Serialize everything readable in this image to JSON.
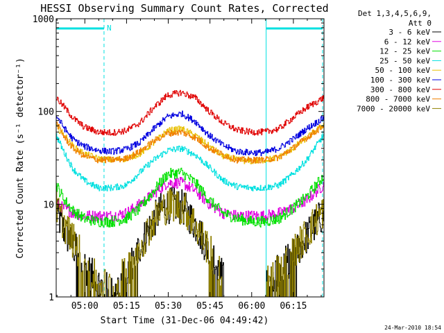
{
  "chart_data": {
    "type": "line",
    "title": "HESSI Observing Summary Count Rates, Corrected",
    "xlabel": "Start Time (31-Dec-06 04:49:42)",
    "ylabel": "Corrected Count Rate (s⁻¹ detector⁻¹)",
    "x_unit": "minutes after 04:49:42",
    "xlim": [
      0,
      96.3
    ],
    "ylim": [
      1,
      1000
    ],
    "yscale": "log",
    "x_tick_labels": [
      "05:00",
      "05:15",
      "05:30",
      "05:45",
      "06:00",
      "06:15"
    ],
    "x_tick_values": [
      10.3,
      25.3,
      40.3,
      55.3,
      70.3,
      85.3
    ],
    "y_tick_labels": [
      "1",
      "10",
      "100",
      "1000"
    ],
    "y_tick_values": [
      1,
      10,
      100,
      1000
    ],
    "legend_header": [
      "Det 1,3,4,5,6,9,",
      "Att 0"
    ],
    "legend_position": "right",
    "series": [
      {
        "name": "3 - 6 keV",
        "color": "#000000",
        "x": [
          0,
          3,
          6,
          9,
          12,
          15,
          18,
          22,
          26,
          30,
          34,
          38,
          42,
          46,
          50,
          54,
          58,
          62,
          66,
          70,
          74,
          78,
          82,
          86,
          90,
          93,
          96
        ],
        "y": [
          8,
          5,
          3.5,
          2.5,
          1.8,
          1.4,
          1.2,
          1.3,
          2,
          3.5,
          6,
          9,
          10,
          9,
          6,
          3.5,
          2,
          1.3,
          1.2,
          1.3,
          1.4,
          1.6,
          2.2,
          3,
          4.5,
          6,
          8
        ]
      },
      {
        "name": "6 - 12 keV",
        "color": "#e000e0",
        "x": [
          0,
          3,
          6,
          10,
          15,
          20,
          25,
          30,
          35,
          40,
          45,
          50,
          55,
          60,
          65,
          70,
          75,
          80,
          85,
          90,
          96
        ],
        "y": [
          10,
          9,
          8,
          7.5,
          7.5,
          7.5,
          8,
          10,
          13,
          17,
          17,
          14,
          10,
          8,
          7.5,
          7.5,
          7.5,
          8,
          9,
          11,
          16
        ]
      },
      {
        "name": "12 - 25 keV",
        "color": "#00e000",
        "x": [
          0,
          3,
          6,
          10,
          15,
          20,
          25,
          30,
          35,
          40,
          45,
          50,
          55,
          60,
          65,
          70,
          75,
          80,
          85,
          90,
          96
        ],
        "y": [
          16,
          11,
          8.5,
          7,
          6.5,
          6.5,
          7,
          9,
          14,
          21,
          22,
          17,
          11,
          8,
          7,
          6.5,
          6.5,
          7,
          9,
          12,
          20
        ]
      },
      {
        "name": "25 - 50 keV",
        "color": "#00e0e0",
        "x": [
          0,
          3,
          6,
          10,
          15,
          20,
          25,
          30,
          35,
          40,
          45,
          50,
          55,
          60,
          65,
          70,
          75,
          80,
          85,
          90,
          96
        ],
        "y": [
          55,
          35,
          24,
          18,
          15,
          15,
          16,
          22,
          30,
          38,
          40,
          34,
          25,
          18,
          15.5,
          15,
          15,
          16,
          21,
          30,
          55
        ]
      },
      {
        "name": "50 - 100 keV",
        "color": "#e8c000",
        "x": [
          0,
          3,
          6,
          10,
          15,
          20,
          25,
          30,
          35,
          40,
          45,
          50,
          55,
          60,
          65,
          70,
          75,
          80,
          85,
          90,
          96
        ],
        "y": [
          68,
          55,
          42,
          35,
          31,
          30,
          31,
          35,
          46,
          62,
          65,
          55,
          42,
          33,
          30,
          29,
          30,
          32,
          40,
          52,
          72
        ]
      },
      {
        "name": "100 - 300 keV",
        "color": "#0000e0",
        "x": [
          0,
          3,
          6,
          10,
          15,
          20,
          25,
          30,
          35,
          40,
          45,
          50,
          55,
          60,
          65,
          70,
          75,
          80,
          85,
          90,
          96
        ],
        "y": [
          90,
          65,
          50,
          42,
          38,
          37,
          39,
          46,
          65,
          88,
          95,
          78,
          55,
          43,
          37,
          36,
          36,
          40,
          50,
          65,
          85
        ]
      },
      {
        "name": "300 - 800 keV",
        "color": "#e00000",
        "x": [
          0,
          3,
          6,
          10,
          15,
          20,
          25,
          30,
          35,
          40,
          45,
          50,
          55,
          60,
          65,
          70,
          75,
          80,
          85,
          90,
          96
        ],
        "y": [
          140,
          110,
          85,
          68,
          60,
          59,
          62,
          75,
          110,
          150,
          160,
          140,
          100,
          75,
          63,
          60,
          60,
          65,
          85,
          110,
          140
        ]
      },
      {
        "name": "800 - 7000 keV",
        "color": "#f08000",
        "x": [
          0,
          3,
          6,
          10,
          15,
          20,
          25,
          30,
          35,
          40,
          45,
          50,
          55,
          60,
          65,
          70,
          75,
          80,
          85,
          90,
          96
        ],
        "y": [
          75,
          52,
          40,
          33,
          30,
          30,
          31,
          37,
          48,
          58,
          60,
          52,
          40,
          34,
          30,
          30,
          30,
          32,
          40,
          52,
          70
        ]
      },
      {
        "name": "7000 - 20000 keV",
        "color": "#908000",
        "x": [
          0,
          3,
          6,
          9,
          12,
          15,
          18,
          22,
          26,
          30,
          34,
          38,
          42,
          46,
          50,
          54,
          58,
          62,
          66,
          70,
          74,
          78,
          82,
          86,
          90,
          93,
          96
        ],
        "y": [
          9,
          6,
          4,
          2.8,
          2,
          1.5,
          1.3,
          1.4,
          2.1,
          3.6,
          6,
          9,
          10,
          9,
          6,
          3.6,
          2.1,
          1.4,
          1.3,
          1.3,
          1.5,
          1.7,
          2.3,
          3.2,
          4.8,
          6.5,
          8.5
        ]
      }
    ],
    "annotations": {
      "flag_color": "#00e0e0",
      "flag_text": "N",
      "flag_bars": [
        [
          0,
          17.2
        ],
        [
          75.5,
          96.3
        ]
      ],
      "dashed_lines_x": [
        17.2,
        96.3
      ],
      "solid_lines_x": [
        0,
        75.5
      ],
      "gap_regions": [
        [
          60,
          75.5
        ]
      ]
    }
  },
  "footer": {
    "timestamp": "24-Mar-2010 18:54"
  }
}
